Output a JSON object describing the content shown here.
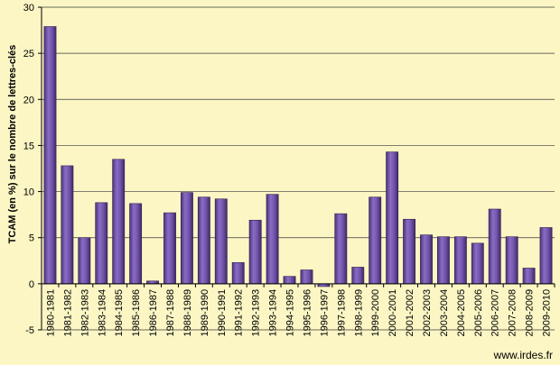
{
  "chart_data": {
    "type": "bar",
    "ylabel": "TCAM (en %) sur le nombre de lettres-clés",
    "xlabel": "",
    "ylim": [
      -5,
      30
    ],
    "yticks": [
      -5,
      0,
      5,
      10,
      15,
      20,
      25,
      30
    ],
    "grid": true,
    "legend": "none",
    "bar_color": "#6b4fa0",
    "categories": [
      "1980-1981",
      "1981-1982",
      "1982-1983",
      "1983-1984",
      "1984-1985",
      "1985-1986",
      "1986-1987",
      "1987-1988",
      "1988-1989",
      "1989-1990",
      "1990-1991",
      "1991-1992",
      "1992-1993",
      "1993-1994",
      "1994-1995",
      "1995-1996",
      "1996-1997",
      "1997-1998",
      "1998-1999",
      "1999-2000",
      "2000-2001",
      "2001-2002",
      "2002-2003",
      "2003-2004",
      "2004-2005",
      "2005-2006",
      "2006-2007",
      "2007-2008",
      "2008-2009",
      "2009-2010"
    ],
    "values": [
      27.9,
      12.8,
      5.0,
      8.8,
      13.5,
      8.7,
      0.3,
      7.7,
      9.9,
      9.4,
      9.2,
      2.3,
      6.9,
      9.7,
      0.8,
      1.5,
      -0.3,
      7.6,
      1.8,
      9.4,
      14.3,
      7.0,
      5.3,
      5.1,
      5.1,
      4.4,
      8.1,
      5.1,
      1.7,
      6.1
    ]
  },
  "source": "www.irdes.fr"
}
